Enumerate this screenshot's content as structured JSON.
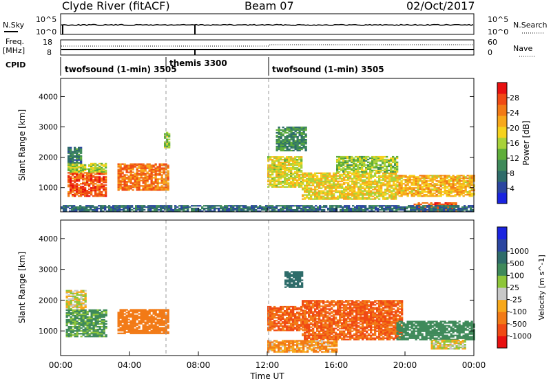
{
  "header": {
    "title": "Clyde River (fitACF)",
    "beam": "Beam 07",
    "date": "02/Oct/2017"
  },
  "status_panel": {
    "nsky_label": "N.Sky",
    "nsearch_label": "N.Search",
    "nsky_ticks": [
      "10^5",
      "10^0"
    ],
    "nsearch_ticks": [
      "10^5",
      "10^0"
    ],
    "freq_label_1": "Freq.",
    "freq_label_2": "[MHz]",
    "freq_ticks": [
      "18",
      "8"
    ],
    "nave_label": "Nave",
    "nave_ticks": [
      "60",
      "0"
    ],
    "cpid_label": "CPID",
    "cpid_segments": [
      {
        "label": "twofsound (1-min) 3505",
        "start_hour": 0,
        "end_hour": 6
      },
      {
        "label": "themis 3300",
        "start_hour": 6,
        "end_hour": 12
      },
      {
        "label": "twofsound (1-min) 3505",
        "start_hour": 12,
        "end_hour": 24
      }
    ]
  },
  "colors": {
    "power": [
      "#1a24e0",
      "#2b46a0",
      "#2e6c6a",
      "#3f8a5a",
      "#5fae3a",
      "#a8d23a",
      "#f5d21e",
      "#f7a81b",
      "#f27a16",
      "#f04a14",
      "#e81010"
    ],
    "velocity": [
      "#e81010",
      "#f04a14",
      "#f27a16",
      "#f7a81b",
      "#c8c8c8",
      "#8ec63a",
      "#3f8a5a",
      "#2e6c6a",
      "#2b46a0",
      "#1a24e0"
    ]
  },
  "chart_data": [
    {
      "type": "heatmap",
      "title": "",
      "xlabel": "",
      "ylabel": "Slant Range [km]",
      "xlim": [
        0,
        24
      ],
      "ylim": [
        200,
        4600
      ],
      "colorbar_label": "Power [dB]",
      "colorbar_ticks": [
        "4",
        "8",
        "12",
        "16",
        "20",
        "24",
        "28"
      ],
      "colorbar_range": [
        0,
        32
      ],
      "regions": [
        {
          "t0": 0.4,
          "t1": 2.6,
          "r0": 700,
          "r1": 1500,
          "value": 27
        },
        {
          "t0": 0.4,
          "t1": 2.6,
          "r0": 1500,
          "r1": 1800,
          "value": 16
        },
        {
          "t0": 0.4,
          "t1": 1.2,
          "r0": 1800,
          "r1": 2300,
          "value": 9
        },
        {
          "t0": 3.3,
          "t1": 6.2,
          "r0": 900,
          "r1": 1800,
          "value": 25
        },
        {
          "t0": 6.0,
          "t1": 6.3,
          "r0": 2300,
          "r1": 2800,
          "value": 14
        },
        {
          "t0": 12.0,
          "t1": 14.0,
          "r0": 1000,
          "r1": 2000,
          "value": 18
        },
        {
          "t0": 12.5,
          "t1": 14.2,
          "r0": 2200,
          "r1": 3000,
          "value": 10
        },
        {
          "t0": 14.0,
          "t1": 19.5,
          "r0": 600,
          "r1": 1500,
          "value": 19
        },
        {
          "t0": 16.0,
          "t1": 19.5,
          "r0": 1500,
          "r1": 2000,
          "value": 15
        },
        {
          "t0": 19.5,
          "t1": 24.0,
          "r0": 700,
          "r1": 1400,
          "value": 21
        },
        {
          "t0": 20.5,
          "t1": 23.0,
          "r0": 200,
          "r1": 500,
          "value": 26
        },
        {
          "t0": 0.0,
          "t1": 24.0,
          "r0": 200,
          "r1": 400,
          "value": 7
        }
      ]
    },
    {
      "type": "heatmap",
      "title": "",
      "xlabel": "Time UT",
      "ylabel": "Slant Range [km]",
      "xlim": [
        0,
        24
      ],
      "ylim": [
        200,
        4600
      ],
      "x_ticks": [
        "00:00",
        "04:00",
        "08:00",
        "12:00",
        "16:00",
        "20:00",
        "00:00"
      ],
      "colorbar_label": "Velocity [m s^-1]",
      "colorbar_ticks": [
        "-1000",
        "-500",
        "-100",
        "-25",
        "25",
        "100",
        "500",
        "1000"
      ],
      "regions": [
        {
          "t0": 0.3,
          "t1": 2.6,
          "r0": 800,
          "r1": 1700,
          "value": 150
        },
        {
          "t0": 0.3,
          "t1": 1.5,
          "r0": 1700,
          "r1": 2300,
          "value": 0
        },
        {
          "t0": 3.3,
          "t1": 6.2,
          "r0": 900,
          "r1": 1700,
          "value": -200
        },
        {
          "t0": 12.0,
          "t1": 14.2,
          "r0": 1000,
          "r1": 1800,
          "value": -500
        },
        {
          "t0": 14.0,
          "t1": 19.8,
          "r0": 700,
          "r1": 2000,
          "value": -500
        },
        {
          "t0": 12.0,
          "t1": 16.0,
          "r0": 300,
          "r1": 700,
          "value": -100
        },
        {
          "t0": 19.5,
          "t1": 24.0,
          "r0": 700,
          "r1": 1300,
          "value": 200
        },
        {
          "t0": 21.5,
          "t1": 23.5,
          "r0": 400,
          "r1": 700,
          "value": 0
        },
        {
          "t0": 13.0,
          "t1": 14.0,
          "r0": 2400,
          "r1": 2900,
          "value": 600
        }
      ]
    }
  ]
}
